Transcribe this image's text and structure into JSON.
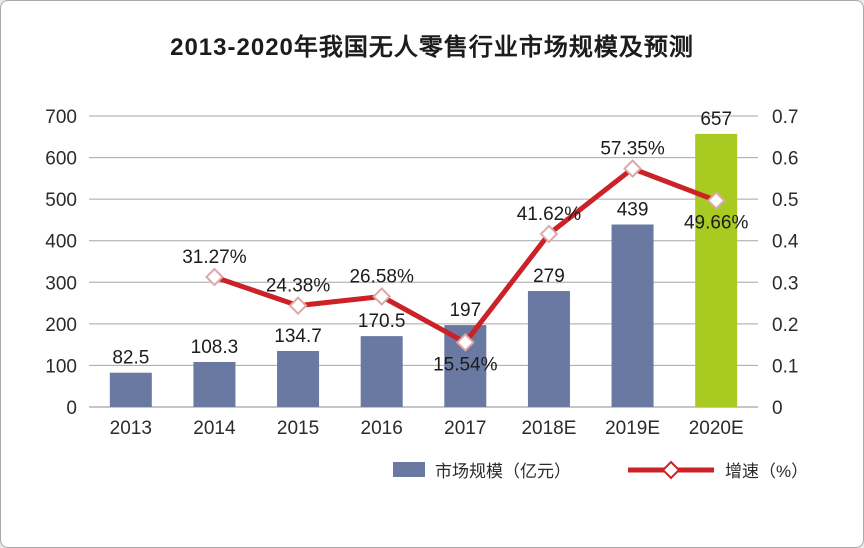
{
  "card": {
    "title": "2013-2020年我国无人零售行业市场规模及预测"
  },
  "legend": {
    "bar_label": "市场规模（亿元）",
    "line_label": "增速（%）"
  },
  "colors": {
    "bar_blue": "#6a79a1",
    "bar_green": "#a9cb21",
    "line_red": "#cb2127",
    "marker_fill": "#ffffff",
    "marker_stroke": "#dca8a8",
    "grid": "#a6a6a6",
    "baseline": "#8c8c8c",
    "axis_text": "#2b2b2b",
    "value_text": "#1c1c1c"
  },
  "chart_data": {
    "type": "bar+line",
    "title": "2013-2020年我国无人零售行业市场规模及预测",
    "categories": [
      "2013",
      "2014",
      "2015",
      "2016",
      "2017",
      "2018E",
      "2019E",
      "2020E"
    ],
    "series": [
      {
        "name": "市场规模（亿元）",
        "type": "bar",
        "axis": "left",
        "values": [
          82.5,
          108.3,
          134.7,
          170.5,
          197,
          279,
          439,
          657
        ],
        "labels": [
          "82.5",
          "108.3",
          "134.7",
          "170.5",
          "197",
          "279",
          "439",
          "657"
        ],
        "colors": [
          "#6a79a1",
          "#6a79a1",
          "#6a79a1",
          "#6a79a1",
          "#6a79a1",
          "#6a79a1",
          "#6a79a1",
          "#a9cb21"
        ]
      },
      {
        "name": "增速（%）",
        "type": "line",
        "axis": "right",
        "values": [
          null,
          31.27,
          24.38,
          26.58,
          15.54,
          41.62,
          57.35,
          49.66
        ],
        "labels": [
          null,
          "31.27%",
          "24.38%",
          "26.58%",
          "15.54%",
          "41.62%",
          "57.35%",
          "49.66%"
        ],
        "label_positions": [
          null,
          "above",
          "above",
          "above",
          "below",
          "above",
          "above",
          "below"
        ],
        "color": "#cb2127",
        "marker": "diamond"
      }
    ],
    "left_axis": {
      "min": 0,
      "max": 700,
      "step": 100,
      "ticks": [
        "0",
        "100",
        "200",
        "300",
        "400",
        "500",
        "600",
        "700"
      ]
    },
    "right_axis": {
      "min": 0,
      "max": 0.7,
      "step": 0.1,
      "ticks": [
        "0",
        "0.1",
        "0.2",
        "0.3",
        "0.4",
        "0.5",
        "0.6",
        "0.7"
      ]
    },
    "grid": true,
    "legend_position": "bottom"
  }
}
